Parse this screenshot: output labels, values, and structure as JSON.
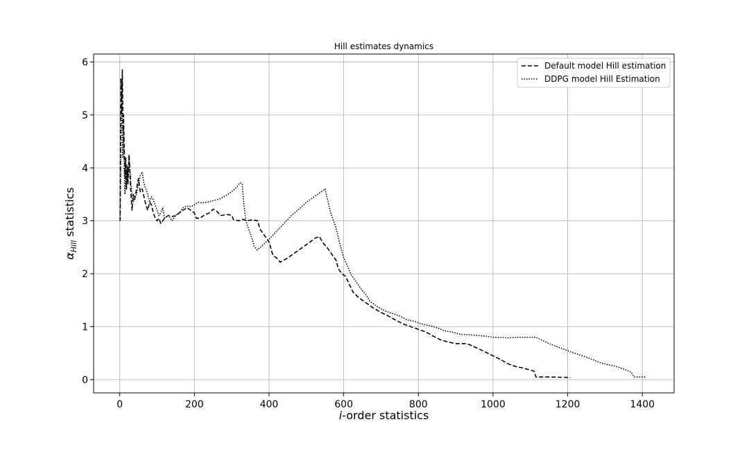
{
  "chart_data": {
    "type": "line",
    "title": "Hill estimates dynamics",
    "xlabel": "i-order statistics",
    "xlabel_italic_part": "i",
    "xlabel_rest": "-order statistics",
    "ylabel": "α_Hill statistics",
    "ylabel_symbol": "α",
    "ylabel_subscript": "Hill",
    "ylabel_rest": " statistics",
    "xlim": [
      -70,
      1485
    ],
    "ylim": [
      -0.25,
      6.15
    ],
    "xticks": [
      0,
      200,
      400,
      600,
      800,
      1000,
      1200,
      1400
    ],
    "yticks": [
      0,
      1,
      2,
      3,
      4,
      5,
      6
    ],
    "grid": true,
    "legend_position": "top-right",
    "series": [
      {
        "name": "Default model Hill estimation",
        "style": "dashed",
        "color": "#000000",
        "points": [
          [
            1,
            3.0
          ],
          [
            2,
            4.5
          ],
          [
            3,
            5.7
          ],
          [
            5,
            5.0
          ],
          [
            7,
            5.85
          ],
          [
            9,
            4.7
          ],
          [
            10,
            5.0
          ],
          [
            12,
            4.4
          ],
          [
            14,
            3.8
          ],
          [
            16,
            4.2
          ],
          [
            18,
            3.6
          ],
          [
            20,
            4.0
          ],
          [
            22,
            3.7
          ],
          [
            25,
            4.25
          ],
          [
            28,
            3.8
          ],
          [
            30,
            3.5
          ],
          [
            33,
            3.2
          ],
          [
            36,
            3.5
          ],
          [
            40,
            3.4
          ],
          [
            45,
            3.6
          ],
          [
            50,
            3.8
          ],
          [
            55,
            3.55
          ],
          [
            60,
            3.6
          ],
          [
            65,
            3.45
          ],
          [
            70,
            3.3
          ],
          [
            75,
            3.2
          ],
          [
            80,
            3.35
          ],
          [
            85,
            3.3
          ],
          [
            90,
            3.15
          ],
          [
            95,
            3.05
          ],
          [
            100,
            3.0
          ],
          [
            105,
            3.05
          ],
          [
            110,
            2.95
          ],
          [
            115,
            3.0
          ],
          [
            120,
            3.05
          ],
          [
            130,
            3.1
          ],
          [
            140,
            3.08
          ],
          [
            150,
            3.1
          ],
          [
            160,
            3.15
          ],
          [
            170,
            3.2
          ],
          [
            180,
            3.25
          ],
          [
            190,
            3.2
          ],
          [
            200,
            3.15
          ],
          [
            205,
            3.05
          ],
          [
            215,
            3.05
          ],
          [
            225,
            3.1
          ],
          [
            240,
            3.15
          ],
          [
            250,
            3.22
          ],
          [
            260,
            3.18
          ],
          [
            270,
            3.1
          ],
          [
            290,
            3.12
          ],
          [
            300,
            3.1
          ],
          [
            305,
            3.02
          ],
          [
            320,
            3.0
          ],
          [
            330,
            3.03
          ],
          [
            340,
            3.0
          ],
          [
            355,
            3.02
          ],
          [
            370,
            3.0
          ],
          [
            375,
            2.85
          ],
          [
            380,
            2.8
          ],
          [
            390,
            2.7
          ],
          [
            400,
            2.6
          ],
          [
            410,
            2.35
          ],
          [
            420,
            2.3
          ],
          [
            430,
            2.22
          ],
          [
            450,
            2.3
          ],
          [
            470,
            2.4
          ],
          [
            490,
            2.5
          ],
          [
            510,
            2.6
          ],
          [
            525,
            2.68
          ],
          [
            535,
            2.7
          ],
          [
            545,
            2.58
          ],
          [
            555,
            2.5
          ],
          [
            565,
            2.4
          ],
          [
            575,
            2.3
          ],
          [
            580,
            2.25
          ],
          [
            585,
            2.1
          ],
          [
            595,
            2.0
          ],
          [
            605,
            1.95
          ],
          [
            615,
            1.8
          ],
          [
            625,
            1.65
          ],
          [
            640,
            1.55
          ],
          [
            660,
            1.45
          ],
          [
            680,
            1.35
          ],
          [
            700,
            1.27
          ],
          [
            720,
            1.2
          ],
          [
            740,
            1.12
          ],
          [
            760,
            1.05
          ],
          [
            780,
            1.0
          ],
          [
            800,
            0.95
          ],
          [
            820,
            0.9
          ],
          [
            840,
            0.82
          ],
          [
            860,
            0.75
          ],
          [
            880,
            0.71
          ],
          [
            900,
            0.68
          ],
          [
            930,
            0.68
          ],
          [
            950,
            0.62
          ],
          [
            980,
            0.52
          ],
          [
            1000,
            0.45
          ],
          [
            1020,
            0.38
          ],
          [
            1040,
            0.3
          ],
          [
            1060,
            0.25
          ],
          [
            1080,
            0.22
          ],
          [
            1100,
            0.18
          ],
          [
            1110,
            0.16
          ],
          [
            1115,
            0.05
          ],
          [
            1150,
            0.05
          ],
          [
            1208,
            0.04
          ]
        ]
      },
      {
        "name": "DDPG model Hill Estimation",
        "style": "dotted",
        "color": "#000000",
        "points": [
          [
            1,
            3.0
          ],
          [
            3,
            4.4
          ],
          [
            4,
            5.6
          ],
          [
            6,
            5.0
          ],
          [
            8,
            4.2
          ],
          [
            10,
            4.8
          ],
          [
            12,
            4.0
          ],
          [
            14,
            3.5
          ],
          [
            16,
            3.9
          ],
          [
            18,
            3.6
          ],
          [
            20,
            4.05
          ],
          [
            22,
            3.8
          ],
          [
            25,
            4.2
          ],
          [
            28,
            3.9
          ],
          [
            30,
            3.7
          ],
          [
            33,
            3.5
          ],
          [
            36,
            3.35
          ],
          [
            40,
            3.45
          ],
          [
            45,
            3.5
          ],
          [
            50,
            3.7
          ],
          [
            55,
            3.85
          ],
          [
            60,
            3.92
          ],
          [
            65,
            3.7
          ],
          [
            70,
            3.6
          ],
          [
            75,
            3.5
          ],
          [
            80,
            3.35
          ],
          [
            85,
            3.45
          ],
          [
            90,
            3.4
          ],
          [
            95,
            3.3
          ],
          [
            100,
            3.2
          ],
          [
            105,
            3.1
          ],
          [
            110,
            3.15
          ],
          [
            115,
            3.25
          ],
          [
            120,
            3.05
          ],
          [
            130,
            3.1
          ],
          [
            140,
            3.0
          ],
          [
            150,
            3.1
          ],
          [
            160,
            3.15
          ],
          [
            170,
            3.25
          ],
          [
            180,
            3.28
          ],
          [
            190,
            3.27
          ],
          [
            200,
            3.3
          ],
          [
            210,
            3.35
          ],
          [
            220,
            3.34
          ],
          [
            235,
            3.35
          ],
          [
            250,
            3.38
          ],
          [
            270,
            3.42
          ],
          [
            290,
            3.5
          ],
          [
            305,
            3.58
          ],
          [
            315,
            3.65
          ],
          [
            322,
            3.72
          ],
          [
            328,
            3.7
          ],
          [
            332,
            3.35
          ],
          [
            336,
            3.1
          ],
          [
            340,
            2.95
          ],
          [
            345,
            2.85
          ],
          [
            350,
            2.75
          ],
          [
            355,
            2.65
          ],
          [
            360,
            2.52
          ],
          [
            368,
            2.45
          ],
          [
            380,
            2.52
          ],
          [
            400,
            2.65
          ],
          [
            420,
            2.8
          ],
          [
            440,
            2.95
          ],
          [
            460,
            3.1
          ],
          [
            480,
            3.22
          ],
          [
            500,
            3.35
          ],
          [
            520,
            3.45
          ],
          [
            540,
            3.55
          ],
          [
            550,
            3.6
          ],
          [
            555,
            3.45
          ],
          [
            560,
            3.3
          ],
          [
            565,
            3.15
          ],
          [
            570,
            3.05
          ],
          [
            578,
            2.9
          ],
          [
            585,
            2.7
          ],
          [
            590,
            2.55
          ],
          [
            600,
            2.3
          ],
          [
            610,
            2.15
          ],
          [
            620,
            1.98
          ],
          [
            630,
            1.88
          ],
          [
            640,
            1.78
          ],
          [
            650,
            1.68
          ],
          [
            660,
            1.6
          ],
          [
            670,
            1.48
          ],
          [
            690,
            1.38
          ],
          [
            710,
            1.3
          ],
          [
            730,
            1.25
          ],
          [
            750,
            1.2
          ],
          [
            770,
            1.13
          ],
          [
            790,
            1.1
          ],
          [
            810,
            1.05
          ],
          [
            830,
            1.02
          ],
          [
            850,
            0.98
          ],
          [
            870,
            0.92
          ],
          [
            890,
            0.9
          ],
          [
            910,
            0.86
          ],
          [
            950,
            0.84
          ],
          [
            980,
            0.82
          ],
          [
            1000,
            0.8
          ],
          [
            1040,
            0.79
          ],
          [
            1080,
            0.8
          ],
          [
            1115,
            0.8
          ],
          [
            1130,
            0.75
          ],
          [
            1150,
            0.68
          ],
          [
            1180,
            0.6
          ],
          [
            1210,
            0.52
          ],
          [
            1240,
            0.45
          ],
          [
            1270,
            0.37
          ],
          [
            1290,
            0.31
          ],
          [
            1310,
            0.28
          ],
          [
            1330,
            0.25
          ],
          [
            1350,
            0.2
          ],
          [
            1370,
            0.14
          ],
          [
            1378,
            0.05
          ],
          [
            1410,
            0.05
          ]
        ]
      }
    ]
  }
}
